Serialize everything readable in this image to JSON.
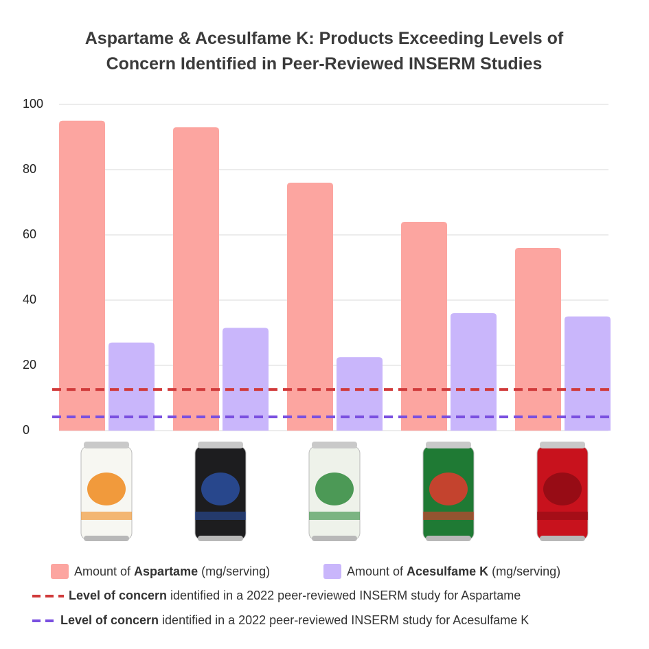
{
  "chart_data": {
    "type": "bar",
    "title": "Aspartame & Acesulfame K: Products Exceeding Levels of Concern Identified in Peer-Reviewed INSERM Studies",
    "categories": [
      null,
      null,
      null,
      null,
      null
    ],
    "series": [
      {
        "name": [
          "Amount of ",
          "Aspartame",
          " (mg/serving)"
        ],
        "color": "#fca5a0",
        "values": [
          95,
          93,
          76,
          64,
          56
        ]
      },
      {
        "name": [
          "Amount of ",
          "Acesulfame K",
          " (mg/serving)"
        ],
        "color": "#c9b6fb",
        "values": [
          27,
          31.5,
          22.5,
          36,
          35
        ]
      }
    ],
    "reference_lines": [
      {
        "name": [
          "Level of concern",
          " identified in a 2022 peer-reviewed INSERM study for Aspartame"
        ],
        "value": 12.6,
        "color": "#d03a3a"
      },
      {
        "name": [
          "Level of concern",
          " identified in a 2022 peer-reviewed INSERM study for Acesulfame K"
        ],
        "value": 4.2,
        "color": "#7a4fe0"
      }
    ],
    "ylim": [
      0,
      100
    ],
    "yticks": [
      0,
      20,
      40,
      60,
      80,
      100
    ],
    "grid": true
  }
}
